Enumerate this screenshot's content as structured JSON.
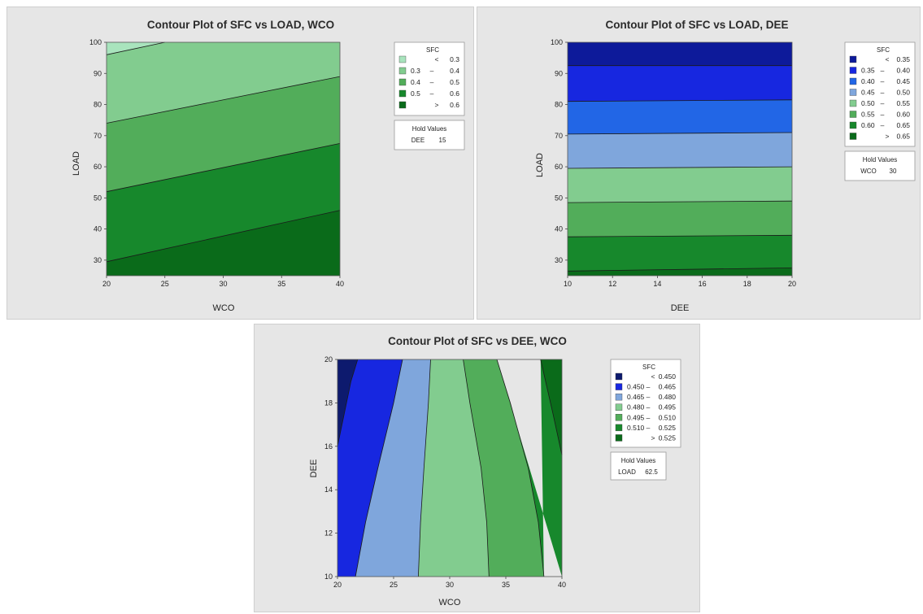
{
  "chart_data": [
    {
      "type": "contour",
      "title": "Contour Plot of SFC vs LOAD, WCO",
      "xlabel": "WCO",
      "ylabel": "LOAD",
      "xlim": [
        20,
        40
      ],
      "ylim": [
        25,
        100
      ],
      "xticks": [
        "20",
        "25",
        "30",
        "35",
        "40"
      ],
      "yticks": [
        "30",
        "40",
        "50",
        "60",
        "70",
        "80",
        "90",
        "100"
      ],
      "legend": {
        "title": "SFC",
        "entries": [
          {
            "op": "<",
            "lo": "",
            "hi": "0.3",
            "color": "#a9e4bd"
          },
          {
            "op": "–",
            "lo": "0.3",
            "hi": "0.4",
            "color": "#82cc8f"
          },
          {
            "op": "–",
            "lo": "0.4",
            "hi": "0.5",
            "color": "#52ad5a"
          },
          {
            "op": "–",
            "lo": "0.5",
            "hi": "0.6",
            "color": "#17882c"
          },
          {
            "op": ">",
            "lo": "",
            "hi": "0.6",
            "color": "#0a6b1a"
          }
        ]
      },
      "hold": {
        "title": "Hold Values",
        "name": "DEE",
        "value": "15"
      },
      "contour_lines": [
        [
          [
            20,
            96
          ],
          [
            25,
            100
          ]
        ],
        [
          [
            20,
            74
          ],
          [
            40,
            89
          ]
        ],
        [
          [
            20,
            52
          ],
          [
            40,
            67.5
          ]
        ],
        [
          [
            20,
            29.5
          ],
          [
            40,
            46
          ]
        ]
      ]
    },
    {
      "type": "contour",
      "title": "Contour Plot of SFC vs LOAD, DEE",
      "xlabel": "DEE",
      "ylabel": "LOAD",
      "xlim": [
        10,
        20
      ],
      "ylim": [
        25,
        100
      ],
      "xticks": [
        "10",
        "12",
        "14",
        "16",
        "18",
        "20"
      ],
      "yticks": [
        "30",
        "40",
        "50",
        "60",
        "70",
        "80",
        "90",
        "100"
      ],
      "legend": {
        "title": "SFC",
        "entries": [
          {
            "op": "<",
            "lo": "",
            "hi": "0.35",
            "color": "#0d1a9a"
          },
          {
            "op": "–",
            "lo": "0.35",
            "hi": "0.40",
            "color": "#1727e0"
          },
          {
            "op": "–",
            "lo": "0.40",
            "hi": "0.45",
            "color": "#2266e6"
          },
          {
            "op": "–",
            "lo": "0.45",
            "hi": "0.50",
            "color": "#7fa6dc"
          },
          {
            "op": "–",
            "lo": "0.50",
            "hi": "0.55",
            "color": "#82cc8f"
          },
          {
            "op": "–",
            "lo": "0.55",
            "hi": "0.60",
            "color": "#52ad5a"
          },
          {
            "op": "–",
            "lo": "0.60",
            "hi": "0.65",
            "color": "#17882c"
          },
          {
            "op": ">",
            "lo": "",
            "hi": "0.65",
            "color": "#0a6b1a"
          }
        ]
      },
      "hold": {
        "title": "Hold Values",
        "name": "WCO",
        "value": "30"
      },
      "contour_lines": [
        [
          [
            10,
            92.5
          ],
          [
            20,
            92.5
          ]
        ],
        [
          [
            10,
            81
          ],
          [
            20,
            81.5
          ]
        ],
        [
          [
            10,
            70.5
          ],
          [
            20,
            71
          ]
        ],
        [
          [
            10,
            59.5
          ],
          [
            20,
            60
          ]
        ],
        [
          [
            10,
            48.5
          ],
          [
            20,
            49
          ]
        ],
        [
          [
            10,
            37.5
          ],
          [
            20,
            38
          ]
        ],
        [
          [
            10,
            26.5
          ],
          [
            20,
            27.5
          ]
        ]
      ]
    },
    {
      "type": "contour",
      "title": "Contour Plot of SFC vs DEE, WCO",
      "xlabel": "WCO",
      "ylabel": "DEE",
      "xlim": [
        20,
        40
      ],
      "ylim": [
        10,
        20
      ],
      "xticks": [
        "20",
        "25",
        "30",
        "35",
        "40"
      ],
      "yticks": [
        "10",
        "12",
        "14",
        "16",
        "18",
        "20"
      ],
      "legend": {
        "title": "SFC",
        "entries": [
          {
            "op": "<",
            "lo": "",
            "hi": "0.450",
            "color": "#0d1a6e"
          },
          {
            "op": "–",
            "lo": "0.450",
            "hi": "0.465",
            "color": "#1727e0"
          },
          {
            "op": "–",
            "lo": "0.465",
            "hi": "0.480",
            "color": "#7fa6dc"
          },
          {
            "op": "–",
            "lo": "0.480",
            "hi": "0.495",
            "color": "#82cc8f"
          },
          {
            "op": "–",
            "lo": "0.495",
            "hi": "0.510",
            "color": "#52ad5a"
          },
          {
            "op": "–",
            "lo": "0.510",
            "hi": "0.525",
            "color": "#17882c"
          },
          {
            "op": ">",
            "lo": "",
            "hi": "0.525",
            "color": "#0a6b1a"
          }
        ]
      },
      "hold": {
        "title": "Hold Values",
        "name": "LOAD",
        "value": "62.5"
      },
      "contour_lines": [
        [
          [
            20,
            16
          ],
          [
            20.6,
            17.5
          ],
          [
            21.2,
            19
          ],
          [
            21.8,
            20
          ]
        ],
        [
          [
            21.6,
            10
          ],
          [
            22.5,
            12.5
          ],
          [
            23.6,
            15
          ],
          [
            25,
            18
          ],
          [
            25.8,
            20
          ]
        ],
        [
          [
            27.2,
            10
          ],
          [
            27.4,
            12.5
          ],
          [
            27.7,
            15
          ],
          [
            28.1,
            18
          ],
          [
            28.3,
            20
          ]
        ],
        [
          [
            33.5,
            10
          ],
          [
            33.3,
            12.5
          ],
          [
            32.8,
            15
          ],
          [
            31.8,
            18
          ],
          [
            31.2,
            20
          ]
        ],
        [
          [
            38.4,
            10
          ],
          [
            37.9,
            12.5
          ],
          [
            37,
            15
          ],
          [
            35.4,
            18
          ],
          [
            34.2,
            20
          ]
        ],
        [
          [
            40,
            15.6
          ],
          [
            39.2,
            17.5
          ],
          [
            38.1,
            20
          ]
        ]
      ]
    }
  ]
}
